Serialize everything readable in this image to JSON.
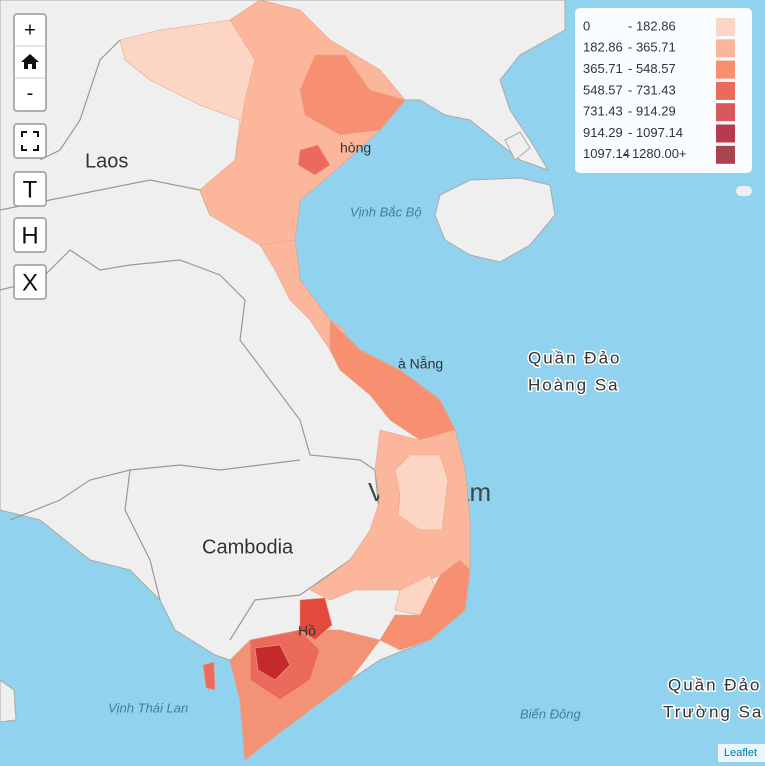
{
  "controls": {
    "zoom_in": "+",
    "zoom_out": "-",
    "text_buttons": [
      "T",
      "H",
      "X"
    ]
  },
  "legend": {
    "items": [
      {
        "from": "0",
        "to": "- 182.86",
        "color": "#fdd5c4"
      },
      {
        "from": "182.86",
        "to": "- 365.71",
        "color": "#fbb69c"
      },
      {
        "from": "365.71",
        "to": "- 548.57",
        "color": "#f78f71"
      },
      {
        "from": "548.57",
        "to": "- 731.43",
        "color": "#ec6a5c"
      },
      {
        "from": "731.43",
        "to": "- 914.29",
        "color": "#d8575c"
      },
      {
        "from": "914.29",
        "to": "- 1097.14",
        "color": "#b83a4f"
      },
      {
        "from": "1097.14",
        "to": "- 1280.00+",
        "color": "#a9444f"
      }
    ]
  },
  "map_labels": {
    "laos": "Laos",
    "cambodia": "Cambodia",
    "vietnam_start": "V",
    "vietnam_end": "am",
    "hai_phong": "hòng",
    "da_nang": "à Nẵng",
    "ho_chi_minh": "Hồ",
    "gulf_tonkin": "Vịnh Bắc Bộ",
    "paracel_1": "Quần Đảo",
    "paracel_2": "Hoàng Sa",
    "gulf_thailand": "Vịnh Thái Lan",
    "east_sea": "Biển Đông",
    "spratly_1": "Quần Đảo",
    "spratly_2": "Trường Sa"
  },
  "attribution": "Leaflet"
}
